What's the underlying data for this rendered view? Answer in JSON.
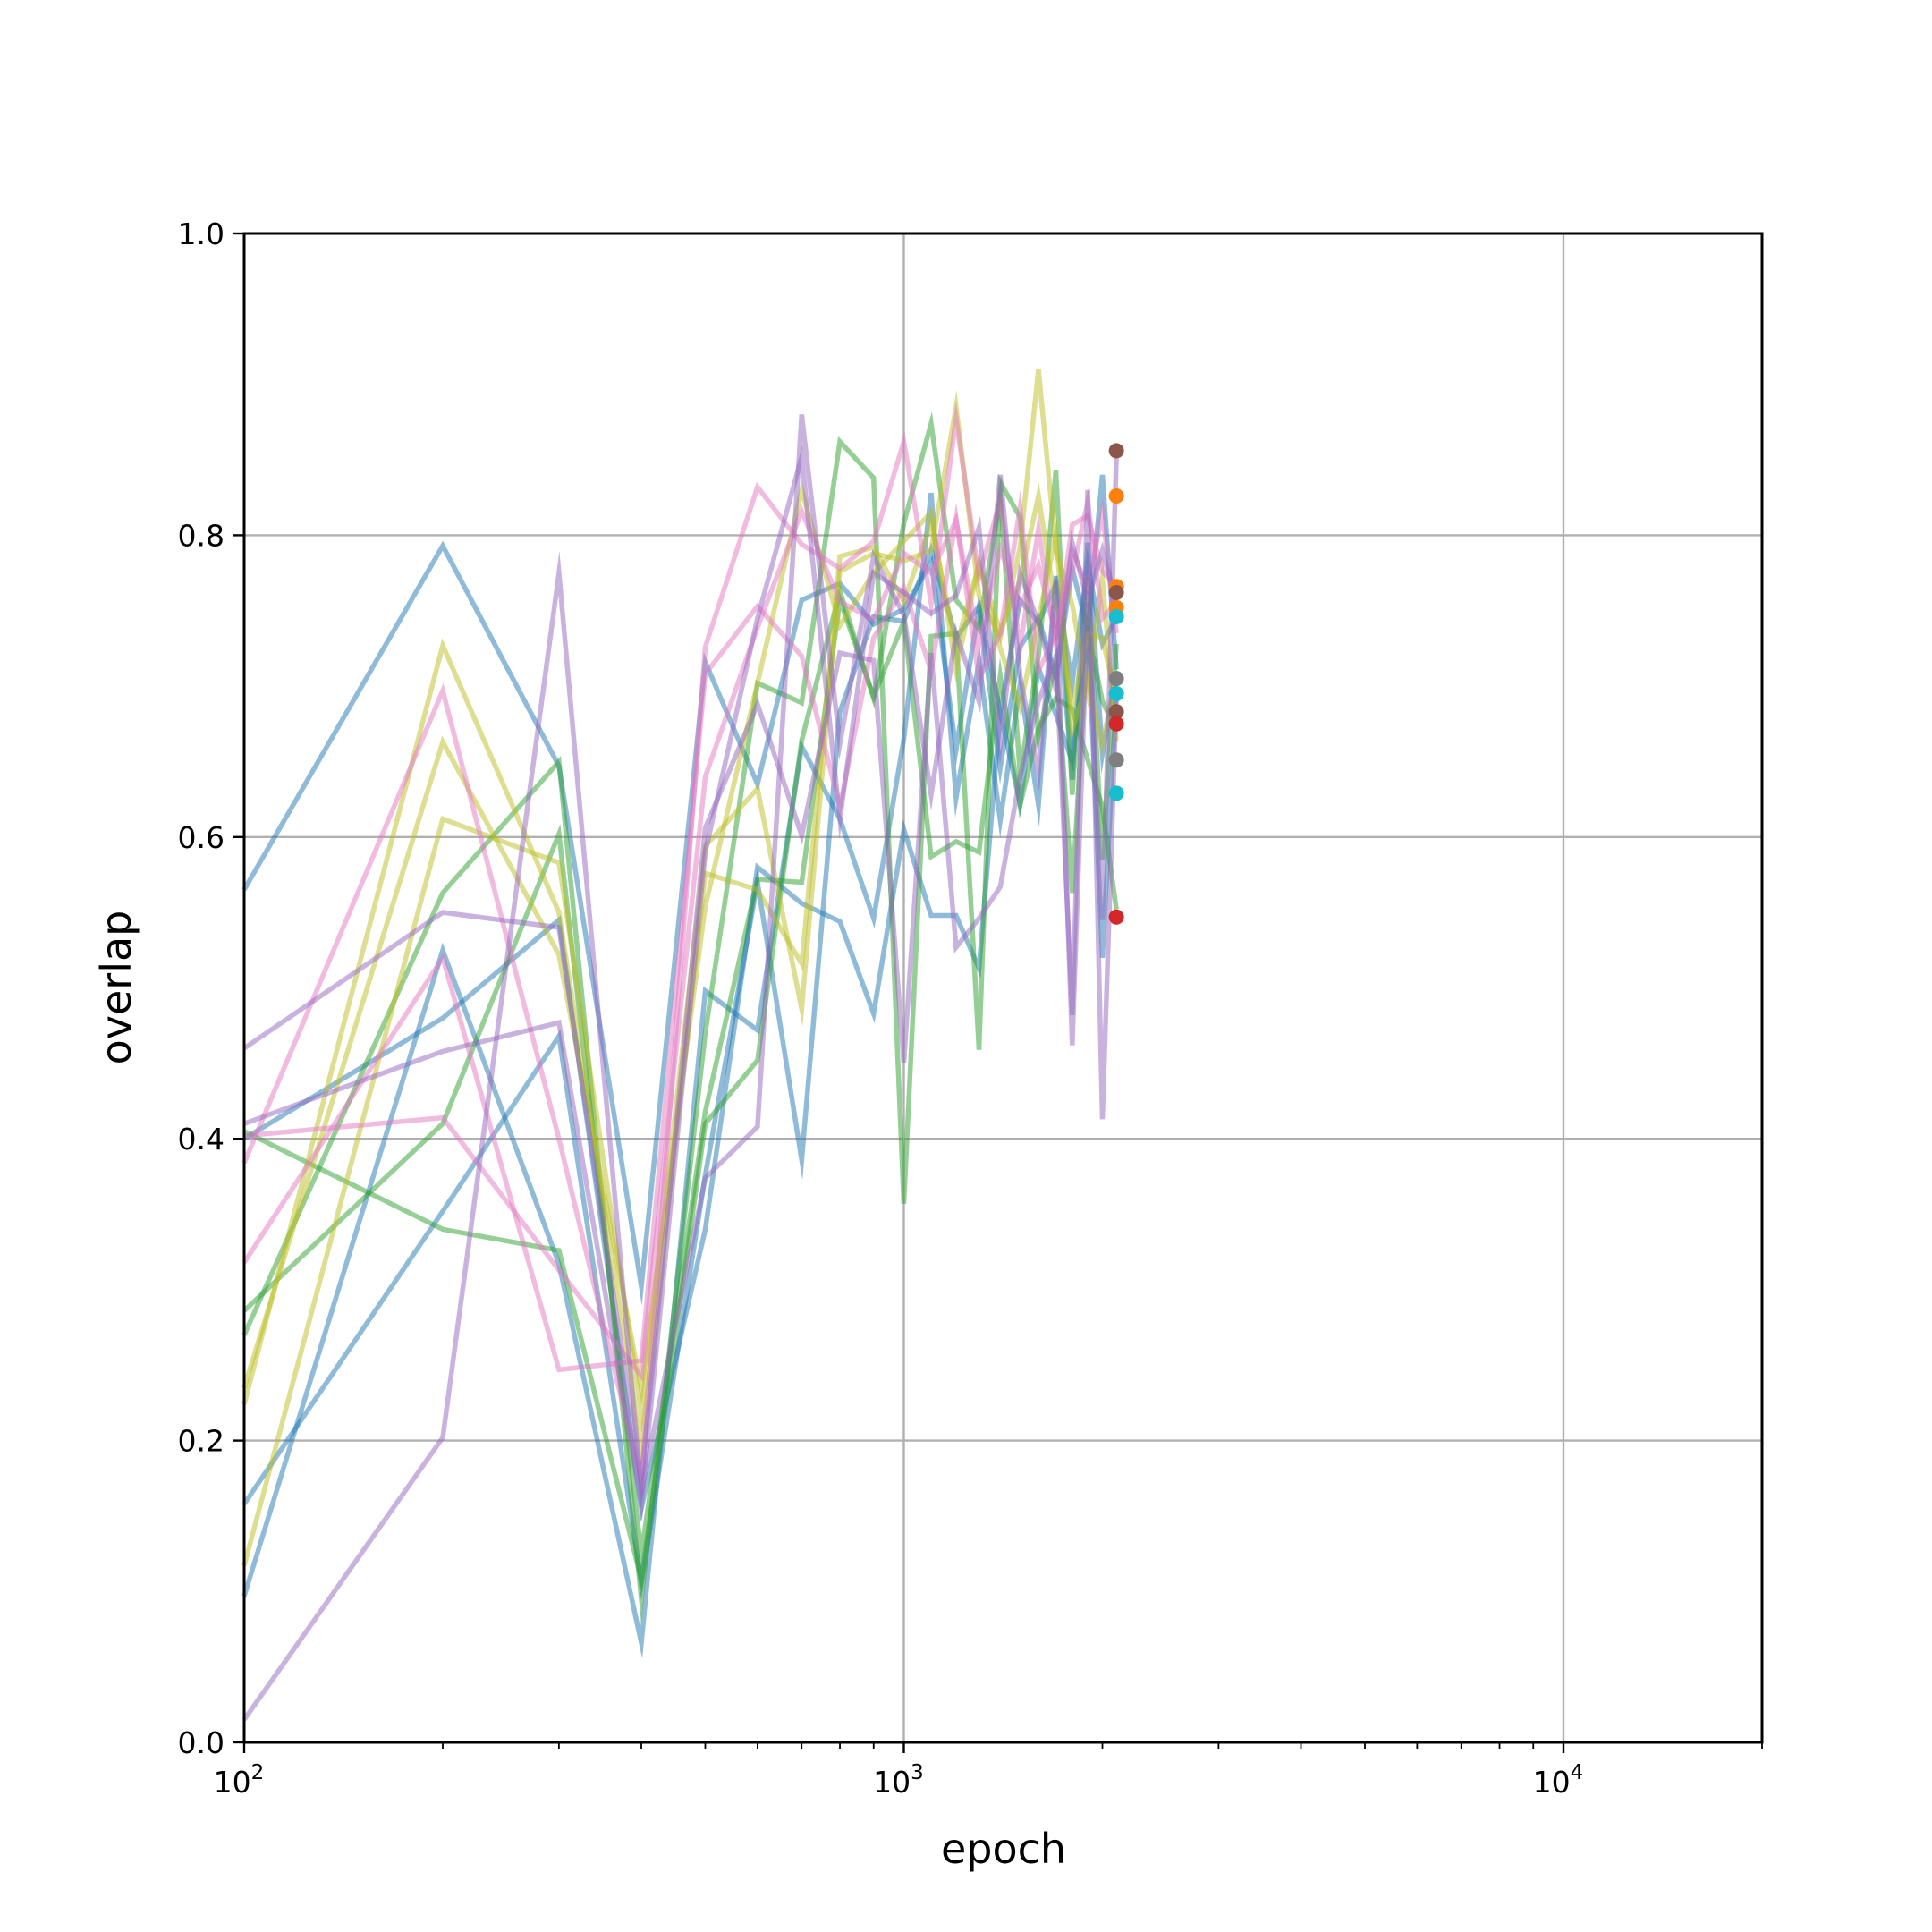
{
  "chart_data": {
    "type": "line",
    "xlabel": "epoch",
    "ylabel": "overlap",
    "xscale": "log",
    "xlim": [
      100,
      20000
    ],
    "ylim": [
      0.0,
      1.0
    ],
    "grid": true,
    "x_ticks": [
      {
        "value": 100,
        "base": "10",
        "exp": "2"
      },
      {
        "value": 1000,
        "base": "10",
        "exp": "3"
      },
      {
        "value": 10000,
        "base": "10",
        "exp": "4"
      }
    ],
    "y_ticks": [
      {
        "value": 0.0,
        "label": "0.0"
      },
      {
        "value": 0.2,
        "label": "0.2"
      },
      {
        "value": 0.4,
        "label": "0.4"
      },
      {
        "value": 0.6,
        "label": "0.6"
      },
      {
        "value": 0.8,
        "label": "0.8"
      },
      {
        "value": 1.0,
        "label": "1.0"
      }
    ],
    "epochs": [
      100,
      200,
      300,
      400,
      500,
      600,
      700,
      800,
      900,
      1000,
      1100,
      1200,
      1300,
      1400,
      1500,
      1600,
      1700,
      1800,
      1900,
      2000,
      2100
    ],
    "series": [
      {
        "color": "#1f77b4",
        "values": [
          0.565,
          0.793,
          0.647,
          0.302,
          0.716,
          0.635,
          0.757,
          0.768,
          0.741,
          0.751,
          0.782,
          0.658,
          0.752,
          0.683,
          0.757,
          0.742,
          0.768,
          0.702,
          0.781,
          0.728,
          0.745
        ]
      },
      {
        "color": "#1f77b4",
        "values": [
          0.4,
          0.48,
          0.545,
          0.155,
          0.34,
          0.58,
          0.556,
          0.544,
          0.483,
          0.605,
          0.548,
          0.548,
          0.513,
          0.683,
          0.622,
          0.712,
          0.681,
          0.65,
          0.74,
          0.52,
          0.695
        ]
      },
      {
        "color": "#1f77b4",
        "values": [
          0.097,
          0.525,
          0.317,
          0.066,
          0.498,
          0.472,
          0.66,
          0.612,
          0.546,
          0.665,
          0.828,
          0.626,
          0.716,
          0.611,
          0.701,
          0.621,
          0.773,
          0.638,
          0.795,
          0.655,
          0.708
        ]
      },
      {
        "color": "#1f77b4",
        "values": [
          0.158,
          0.352,
          0.468,
          0.105,
          0.376,
          0.57,
          0.386,
          0.683,
          0.746,
          0.743,
          0.79,
          0.732,
          0.753,
          0.646,
          0.726,
          0.745,
          0.706,
          0.778,
          0.737,
          0.84,
          0.711
        ]
      },
      {
        "color": "#2ca02c",
        "values": [
          0.405,
          0.34,
          0.326,
          0.108,
          0.41,
          0.452,
          0.664,
          0.763,
          0.692,
          0.808,
          0.874,
          0.757,
          0.738,
          0.826,
          0.642,
          0.72,
          0.843,
          0.628,
          0.772,
          0.585,
          0.728
        ]
      },
      {
        "color": "#2ca02c",
        "values": [
          0.27,
          0.563,
          0.65,
          0.095,
          0.47,
          0.702,
          0.689,
          0.862,
          0.838,
          0.357,
          0.733,
          0.735,
          0.459,
          0.835,
          0.812,
          0.667,
          0.716,
          0.563,
          0.737,
          0.69,
          0.67
        ]
      },
      {
        "color": "#2ca02c",
        "values": [
          0.286,
          0.41,
          0.602,
          0.125,
          0.418,
          0.572,
          0.57,
          0.757,
          0.693,
          0.743,
          0.587,
          0.597,
          0.59,
          0.707,
          0.621,
          0.672,
          0.692,
          0.685,
          0.651,
          0.62,
          0.552
        ]
      },
      {
        "color": "#bcbd22",
        "values": [
          0.117,
          0.612,
          0.583,
          0.218,
          0.594,
          0.632,
          0.486,
          0.776,
          0.788,
          0.783,
          0.79,
          0.885,
          0.76,
          0.732,
          0.792,
          0.91,
          0.79,
          0.754,
          0.696,
          0.771,
          0.663
        ]
      },
      {
        "color": "#bcbd22",
        "values": [
          0.224,
          0.727,
          0.55,
          0.196,
          0.576,
          0.565,
          0.516,
          0.786,
          0.792,
          0.756,
          0.808,
          0.726,
          0.781,
          0.736,
          0.77,
          0.826,
          0.752,
          0.686,
          0.735,
          0.732,
          0.69
        ]
      },
      {
        "color": "#bcbd22",
        "values": [
          0.235,
          0.663,
          0.522,
          0.234,
          0.554,
          0.702,
          0.83,
          0.74,
          0.775,
          0.796,
          0.815,
          0.711,
          0.781,
          0.725,
          0.686,
          0.744,
          0.8,
          0.671,
          0.703,
          0.661,
          0.71
        ]
      },
      {
        "color": "#e377c2",
        "values": [
          0.384,
          0.697,
          0.4,
          0.173,
          0.726,
          0.832,
          0.794,
          0.778,
          0.796,
          0.862,
          0.755,
          0.877,
          0.773,
          0.823,
          0.726,
          0.804,
          0.728,
          0.807,
          0.813,
          0.776,
          0.766
        ]
      },
      {
        "color": "#e377c2",
        "values": [
          0.318,
          0.52,
          0.247,
          0.253,
          0.708,
          0.753,
          0.72,
          0.62,
          0.732,
          0.765,
          0.71,
          0.811,
          0.705,
          0.735,
          0.818,
          0.71,
          0.734,
          0.775,
          0.822,
          0.745,
          0.755
        ]
      },
      {
        "color": "#e377c2",
        "values": [
          0.402,
          0.414,
          0.313,
          0.243,
          0.64,
          0.739,
          0.816,
          0.756,
          0.744,
          0.788,
          0.775,
          0.81,
          0.727,
          0.791,
          0.753,
          0.78,
          0.733,
          0.79,
          0.765,
          0.815,
          0.735
        ]
      },
      {
        "color": "#9467bd",
        "values": [
          0.46,
          0.55,
          0.54,
          0.173,
          0.606,
          0.688,
          0.601,
          0.722,
          0.717,
          0.45,
          0.722,
          0.527,
          0.546,
          0.567,
          0.64,
          0.69,
          0.72,
          0.482,
          0.83,
          0.413,
          0.693
        ]
      },
      {
        "color": "#9467bd",
        "values": [
          0.015,
          0.202,
          0.775,
          0.166,
          0.374,
          0.408,
          0.88,
          0.662,
          0.786,
          0.747,
          0.628,
          0.735,
          0.69,
          0.84,
          0.707,
          0.642,
          0.77,
          0.462,
          0.755,
          0.545,
          0.852
        ]
      },
      {
        "color": "#9467bd",
        "values": [
          0.41,
          0.458,
          0.477,
          0.158,
          0.59,
          0.745,
          0.852,
          0.612,
          0.775,
          0.762,
          0.748,
          0.76,
          0.805,
          0.662,
          0.775,
          0.742,
          0.698,
          0.795,
          0.756,
          0.79,
          0.755
        ]
      }
    ],
    "end_markers": [
      {
        "color": "#8c564b",
        "value": 0.856
      },
      {
        "color": "#ff7f0e",
        "value": 0.826
      },
      {
        "color": "#ff7f0e",
        "value": 0.766
      },
      {
        "color": "#8c564b",
        "value": 0.762
      },
      {
        "color": "#ff7f0e",
        "value": 0.752
      },
      {
        "color": "#17becf",
        "value": 0.746
      },
      {
        "color": "#7f7f7f",
        "value": 0.705
      },
      {
        "color": "#17becf",
        "value": 0.695
      },
      {
        "color": "#8c564b",
        "value": 0.683
      },
      {
        "color": "#d62728",
        "value": 0.675
      },
      {
        "color": "#7f7f7f",
        "value": 0.651
      },
      {
        "color": "#17becf",
        "value": 0.629
      },
      {
        "color": "#d62728",
        "value": 0.547
      }
    ],
    "end_marker_epoch": 2100
  }
}
